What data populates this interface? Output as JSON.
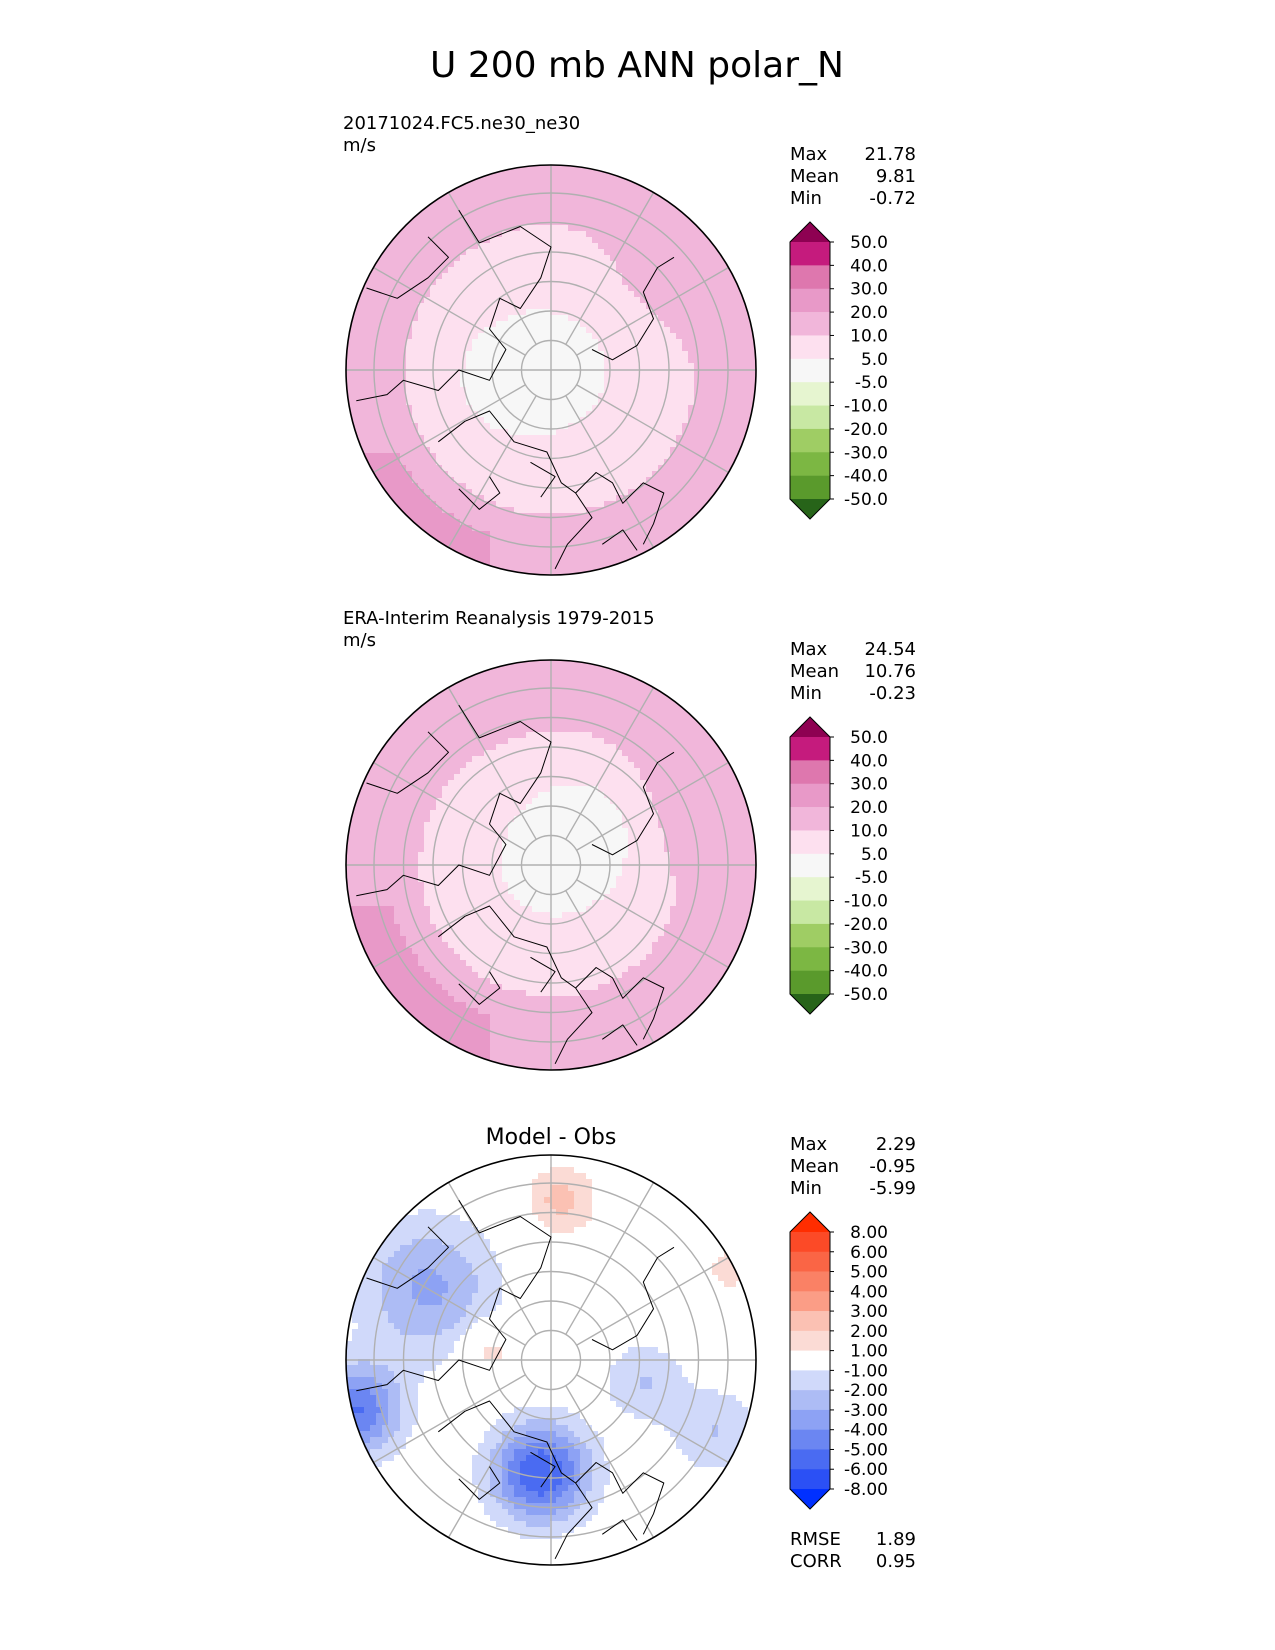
{
  "title": "U 200 mb ANN polar_N",
  "colors": {
    "background": "#ffffff",
    "ocean_line": "#000000",
    "grid": "#b0b0b0",
    "pink": [
      "#8e0152",
      "#c51b7d",
      "#de77ae",
      "#e899c8",
      "#f1b6da",
      "#fde0ef",
      "#f7f7f7"
    ],
    "green": [
      "#f7f7f7",
      "#e6f5d0",
      "#c8e8a3",
      "#9fcd64",
      "#7cb743",
      "#5a9a2c",
      "#276419"
    ],
    "diff": [
      "#0030ff",
      "#2b50f5",
      "#4a6bf2",
      "#6b86f2",
      "#8da2f4",
      "#adbcf5",
      "#d0d9fa",
      "#ffffff",
      "#fbdbd5",
      "#fbc1b3",
      "#fb9d86",
      "#fa8165",
      "#fa6545",
      "#fc4a27",
      "#ff2d00"
    ]
  },
  "chart_data": [
    {
      "type": "heatmap",
      "projection": "north-polar-stereographic",
      "subtitle": "20171024.FC5.ne30_ne30",
      "units": "m/s",
      "stats": [
        {
          "label": "Max",
          "value": "21.78"
        },
        {
          "label": "Mean",
          "value": "9.81"
        },
        {
          "label": "Min",
          "value": "-0.72"
        }
      ],
      "colorbar": {
        "levels": [
          "50.0",
          "40.0",
          "30.0",
          "20.0",
          "10.0",
          "5.0",
          "-5.0",
          "-10.0",
          "-20.0",
          "-30.0",
          "-40.0",
          "-50.0"
        ],
        "extend": "both"
      },
      "field": "model",
      "max": 21.78,
      "mean": 9.81,
      "min": -0.72
    },
    {
      "type": "heatmap",
      "projection": "north-polar-stereographic",
      "subtitle": "ERA-Interim Reanalysis 1979-2015",
      "units": "m/s",
      "stats": [
        {
          "label": "Max",
          "value": "24.54"
        },
        {
          "label": "Mean",
          "value": "10.76"
        },
        {
          "label": "Min",
          "value": "-0.23"
        }
      ],
      "colorbar": {
        "levels": [
          "50.0",
          "40.0",
          "30.0",
          "20.0",
          "10.0",
          "5.0",
          "-5.0",
          "-10.0",
          "-20.0",
          "-30.0",
          "-40.0",
          "-50.0"
        ],
        "extend": "both"
      },
      "field": "obs",
      "max": 24.54,
      "mean": 10.76,
      "min": -0.23
    },
    {
      "type": "heatmap",
      "projection": "north-polar-stereographic",
      "subtitle": "Model - Obs",
      "units": "",
      "stats": [
        {
          "label": "Max",
          "value": "2.29"
        },
        {
          "label": "Mean",
          "value": "-0.95"
        },
        {
          "label": "Min",
          "value": "-5.99"
        }
      ],
      "colorbar": {
        "levels": [
          "8.00",
          "6.00",
          "5.00",
          "4.00",
          "3.00",
          "2.00",
          "1.00",
          "-1.00",
          "-2.00",
          "-3.00",
          "-4.00",
          "-5.00",
          "-6.00",
          "-8.00"
        ],
        "extend": "both"
      },
      "metrics": [
        {
          "label": "RMSE",
          "value": "1.89"
        },
        {
          "label": "CORR",
          "value": "0.95"
        }
      ],
      "field": "diff",
      "max": 2.29,
      "mean": -0.95,
      "min": -5.99
    }
  ]
}
